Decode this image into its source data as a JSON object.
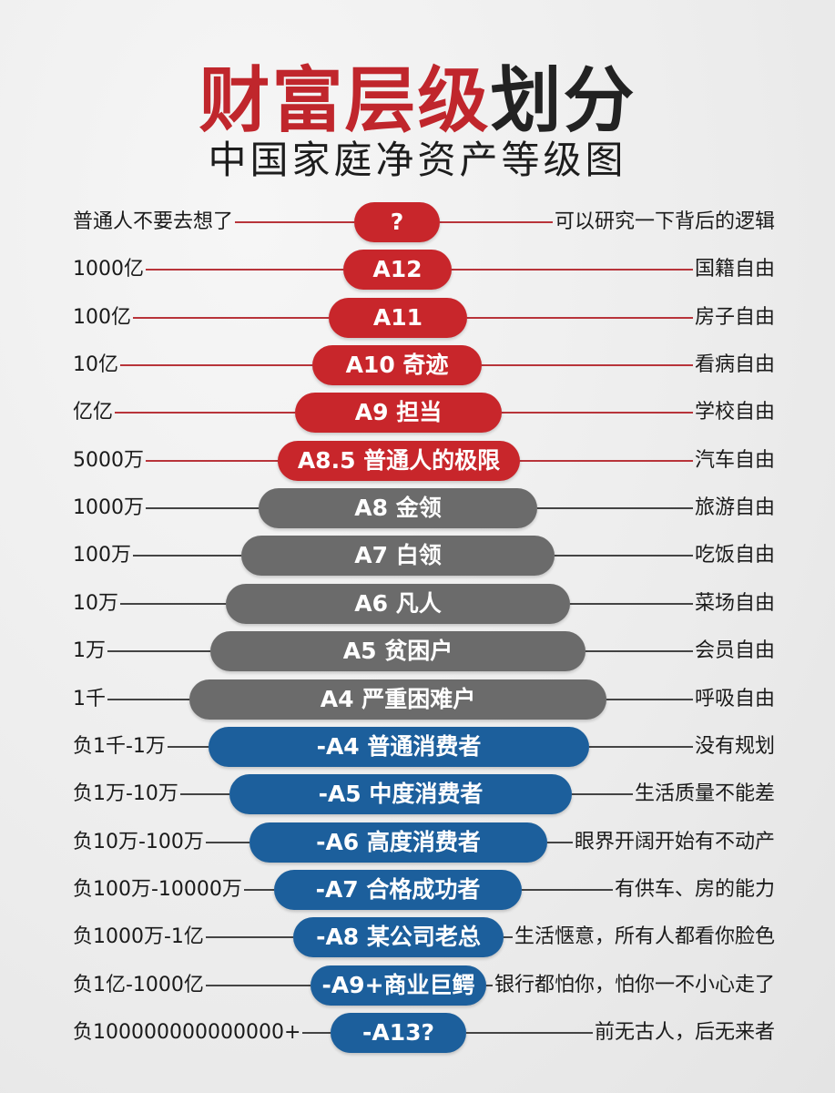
{
  "title": {
    "red_part": "财富层级",
    "dark_part": "划分"
  },
  "subtitle": "中国家庭净资产等级图",
  "colors": {
    "red": "#c8262b",
    "gray": "#6b6b6b",
    "blue": "#1c5f9c",
    "red_line": "#b8343a",
    "dark_line": "#444444"
  },
  "tiers": [
    {
      "left": "普通人不要去想了",
      "pill": "?",
      "right": "可以研究一下背后的逻辑",
      "color": "red"
    },
    {
      "left": "1000亿",
      "pill": "A12",
      "right": "国籍自由",
      "color": "red"
    },
    {
      "left": "100亿",
      "pill": "A11",
      "right": "房子自由",
      "color": "red"
    },
    {
      "left": "10亿",
      "pill": "A10  奇迹",
      "right": "看病自由",
      "color": "red"
    },
    {
      "left": "亿亿",
      "pill": "A9  担当",
      "right": "学校自由",
      "color": "red"
    },
    {
      "left": "5000万",
      "pill": "A8.5  普通人的极限",
      "right": "汽车自由",
      "color": "red"
    },
    {
      "left": "1000万",
      "pill": "A8  金领",
      "right": "旅游自由",
      "color": "gray"
    },
    {
      "left": "100万",
      "pill": "A7  白领",
      "right": "吃饭自由",
      "color": "gray"
    },
    {
      "left": "10万",
      "pill": "A6  凡人",
      "right": "菜场自由",
      "color": "gray"
    },
    {
      "left": "1万",
      "pill": "A5  贫困户",
      "right": "会员自由",
      "color": "gray"
    },
    {
      "left": "1千",
      "pill": "A4  严重困难户",
      "right": "呼吸自由",
      "color": "gray"
    },
    {
      "left": "负1千-1万",
      "pill": "-A4 普通消费者",
      "right": "没有规划",
      "color": "blue"
    },
    {
      "left": "负1万-10万",
      "pill": "-A5 中度消费者",
      "right": "生活质量不能差",
      "color": "blue"
    },
    {
      "left": "负10万-100万",
      "pill": "-A6 高度消费者",
      "right": "眼界开阔开始有不动产",
      "color": "blue"
    },
    {
      "left": "负100万-10000万",
      "pill": "-A7 合格成功者",
      "right": "有供车、房的能力",
      "color": "blue"
    },
    {
      "left": "负1000万-1亿",
      "pill": "-A8 某公司老总",
      "right": "生活惬意，所有人都看你脸色",
      "color": "blue"
    },
    {
      "left": "负1亿-1000亿",
      "pill": "-A9+商业巨鳄",
      "right": "银行都怕你，怕你一不小心走了",
      "color": "blue"
    },
    {
      "left": "负100000000000000+",
      "pill": "-A13?",
      "right": "前无古人，后无来者",
      "color": "blue"
    }
  ]
}
